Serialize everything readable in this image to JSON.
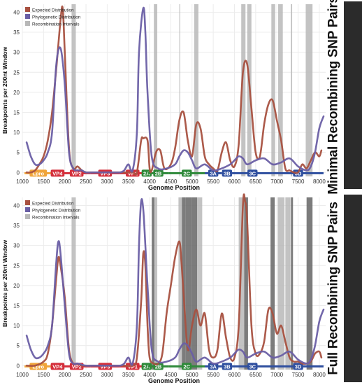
{
  "colors": {
    "expected": "#a85140",
    "phylogenetic": "#6a5fa5",
    "interval_light": "#b8b8b8",
    "interval_dark": "#6e6e6e"
  },
  "chart_data": [
    {
      "type": "line",
      "panel_label": "Minimal Recombining SNP Pairs",
      "xlabel": "Genome Position",
      "ylabel": "Breakpoints per 200nt Window",
      "xlim": [
        1000,
        8150
      ],
      "ylim": [
        -1,
        42
      ],
      "x_ticks": [
        1000,
        1500,
        2000,
        2500,
        3000,
        3500,
        4000,
        4500,
        5000,
        5500,
        6000,
        6500,
        7000,
        7500,
        8000
      ],
      "y_ticks": [
        0,
        5,
        10,
        15,
        20,
        25,
        30,
        35,
        40
      ],
      "grid": true,
      "legend": {
        "position": "top-left",
        "entries": [
          "Expected Distribution",
          "Phylogenetic Distribution",
          "Recombination Intervals"
        ]
      },
      "series": [
        {
          "name": "Expected Distribution",
          "x": [
            1100,
            1200,
            1300,
            1400,
            1500,
            1600,
            1700,
            1800,
            1900,
            1950,
            2000,
            2100,
            2200,
            2300,
            2400,
            2500,
            2600,
            2800,
            3000,
            3200,
            3400,
            3600,
            3700,
            3800,
            3850,
            3950,
            4000,
            4050,
            4150,
            4250,
            4350,
            4500,
            4600,
            4700,
            4800,
            4900,
            5000,
            5100,
            5200,
            5300,
            5400,
            5500,
            5600,
            5700,
            5800,
            5900,
            6000,
            6100,
            6200,
            6300,
            6400,
            6500,
            6600,
            6700,
            6800,
            6900,
            7000,
            7100,
            7200,
            7300,
            7400,
            7500,
            7600,
            7700,
            7800,
            7900,
            8000,
            8050
          ],
          "y": [
            0,
            0,
            0.5,
            2,
            4,
            8,
            15,
            26,
            38,
            41,
            30,
            6,
            1,
            1.5,
            0.5,
            0,
            0,
            0,
            0,
            0,
            0,
            0,
            0,
            8,
            8.5,
            8,
            1,
            0.5,
            5,
            5.5,
            1,
            2,
            6,
            13,
            15,
            8,
            4,
            12,
            11,
            4,
            2,
            1,
            0.5,
            5,
            7.5,
            3,
            1.5,
            7,
            25,
            27,
            16,
            5,
            4,
            12,
            17,
            18,
            13,
            8,
            1,
            0.5,
            0,
            0,
            2,
            1,
            3,
            5,
            4,
            5.5
          ]
        },
        {
          "name": "Phylogenetic Distribution",
          "x": [
            1100,
            1200,
            1300,
            1400,
            1500,
            1600,
            1700,
            1800,
            1900,
            2000,
            2100,
            2200,
            2300,
            2400,
            2500,
            2700,
            2900,
            3100,
            3300,
            3400,
            3500,
            3600,
            3700,
            3750,
            3850,
            3900,
            3950,
            4050,
            4200,
            4400,
            4600,
            4700,
            4800,
            4900,
            5000,
            5100,
            5300,
            5500,
            5700,
            5900,
            6000,
            6100,
            6200,
            6300,
            6500,
            6700,
            6900,
            7100,
            7300,
            7500,
            7700,
            7800,
            7900,
            8000,
            8100
          ],
          "y": [
            7.5,
            4,
            2,
            2,
            3,
            5,
            10,
            27,
            31,
            22,
            5,
            1,
            0.5,
            0.5,
            0,
            0,
            0,
            0,
            0,
            0.5,
            2,
            0.5,
            10,
            30,
            41,
            35,
            20,
            4,
            1,
            1,
            2,
            4,
            5.5,
            5,
            3,
            1,
            2,
            0.5,
            1,
            2,
            3,
            4,
            3.5,
            2,
            3,
            3.5,
            2,
            2.5,
            3.5,
            1.5,
            0.5,
            1.5,
            5,
            11,
            14
          ]
        }
      ],
      "recombination_intervals": [
        {
          "start": 2160,
          "end": 2260,
          "shade": "light"
        },
        {
          "start": 4100,
          "end": 4180,
          "shade": "light"
        },
        {
          "start": 4700,
          "end": 4720,
          "shade": "light"
        },
        {
          "start": 5050,
          "end": 5150,
          "shade": "light"
        },
        {
          "start": 6160,
          "end": 6260,
          "shade": "light"
        },
        {
          "start": 6300,
          "end": 6400,
          "shade": "light"
        },
        {
          "start": 6870,
          "end": 6960,
          "shade": "light"
        },
        {
          "start": 7030,
          "end": 7140,
          "shade": "light"
        },
        {
          "start": 7330,
          "end": 7360,
          "shade": "light"
        },
        {
          "start": 7680,
          "end": 7840,
          "shade": "light"
        }
      ]
    },
    {
      "type": "line",
      "panel_label": "Full Recombining SNP Pairs",
      "xlabel": "Genome Position",
      "ylabel": "Breakpoints per 200nt Window",
      "xlim": [
        1000,
        8150
      ],
      "ylim": [
        -1,
        42
      ],
      "x_ticks": [
        1000,
        1500,
        2000,
        2500,
        3000,
        3500,
        4000,
        4500,
        5000,
        5500,
        6000,
        6500,
        7000,
        7500,
        8000
      ],
      "y_ticks": [
        0,
        5,
        10,
        15,
        20,
        25,
        30,
        35,
        40
      ],
      "grid": true,
      "legend": {
        "position": "top-left",
        "entries": [
          "Expected Distribution",
          "Phylogenetic Distribution",
          "Recombination Intervals"
        ]
      },
      "series": [
        {
          "name": "Expected Distribution",
          "x": [
            1100,
            1300,
            1500,
            1600,
            1700,
            1800,
            1850,
            1900,
            2000,
            2100,
            2200,
            2300,
            2400,
            2600,
            2800,
            3000,
            3200,
            3400,
            3600,
            3700,
            3800,
            3850,
            3900,
            3950,
            4000,
            4100,
            4200,
            4300,
            4400,
            4500,
            4600,
            4700,
            4750,
            4800,
            4900,
            5000,
            5100,
            5200,
            5300,
            5400,
            5500,
            5600,
            5700,
            5800,
            5900,
            6000,
            6100,
            6200,
            6250,
            6300,
            6400,
            6500,
            6600,
            6700,
            6800,
            6900,
            7000,
            7100,
            7200,
            7300,
            7400,
            7500,
            7600,
            7700,
            7800,
            7900,
            8000,
            8050
          ],
          "y": [
            0,
            0,
            1,
            3,
            10,
            22,
            27,
            25,
            17,
            4,
            0.5,
            0.5,
            0,
            0,
            0,
            0,
            0,
            0,
            0,
            2,
            16,
            28,
            25,
            10,
            2,
            0.5,
            0.5,
            3,
            13,
            20,
            27,
            31,
            26,
            18,
            4,
            10,
            14,
            10,
            13,
            4,
            2,
            4,
            13,
            7,
            2,
            2,
            10,
            40,
            41,
            36,
            10,
            3,
            3,
            6,
            14,
            13,
            8,
            10,
            6,
            2,
            1,
            1,
            0.5,
            0.5,
            1,
            3,
            3.5,
            2
          ]
        },
        {
          "name": "Phylogenetic Distribution",
          "x": [
            1100,
            1200,
            1300,
            1400,
            1500,
            1600,
            1700,
            1800,
            1850,
            1900,
            2000,
            2100,
            2200,
            2300,
            2500,
            2700,
            2900,
            3100,
            3300,
            3400,
            3500,
            3600,
            3700,
            3750,
            3800,
            3850,
            3900,
            3950,
            4050,
            4200,
            4400,
            4600,
            4700,
            4800,
            4900,
            5000,
            5100,
            5300,
            5500,
            5700,
            5900,
            6000,
            6100,
            6200,
            6300,
            6500,
            6700,
            6900,
            7100,
            7300,
            7500,
            7700,
            7800,
            7900,
            8000,
            8100
          ],
          "y": [
            7.5,
            4,
            2,
            2,
            3,
            5,
            10,
            26,
            31,
            28,
            15,
            3,
            0.5,
            0.5,
            0,
            0,
            0,
            0,
            0,
            0.5,
            2,
            0.5,
            10,
            30,
            41,
            39,
            30,
            20,
            4,
            1,
            1,
            2,
            4,
            5.5,
            5,
            3,
            1,
            2,
            0.5,
            1,
            2,
            3,
            4,
            3.5,
            2,
            3,
            3.5,
            2,
            2.5,
            3.5,
            1.5,
            0.5,
            1.5,
            5,
            11,
            14
          ]
        }
      ],
      "recombination_intervals": [
        {
          "start": 2160,
          "end": 2260,
          "shade": "light"
        },
        {
          "start": 4050,
          "end": 4120,
          "shade": "dark"
        },
        {
          "start": 4130,
          "end": 4180,
          "shade": "light"
        },
        {
          "start": 4680,
          "end": 4760,
          "shade": "light"
        },
        {
          "start": 4760,
          "end": 4850,
          "shade": "dark"
        },
        {
          "start": 4850,
          "end": 5000,
          "shade": "dark"
        },
        {
          "start": 5000,
          "end": 5120,
          "shade": "dark"
        },
        {
          "start": 5120,
          "end": 5240,
          "shade": "light"
        },
        {
          "start": 6100,
          "end": 6230,
          "shade": "light"
        },
        {
          "start": 6230,
          "end": 6320,
          "shade": "dark"
        },
        {
          "start": 6850,
          "end": 6950,
          "shade": "dark"
        },
        {
          "start": 7020,
          "end": 7180,
          "shade": "light"
        },
        {
          "start": 7200,
          "end": 7320,
          "shade": "light"
        },
        {
          "start": 7330,
          "end": 7380,
          "shade": "dark"
        },
        {
          "start": 7700,
          "end": 7840,
          "shade": "dark"
        }
      ]
    }
  ],
  "genome_map": [
    {
      "label": "Lpro",
      "start": 1050,
      "end": 1700,
      "color": "#f0a53a"
    },
    {
      "label": "VP4",
      "start": 1700,
      "end": 1960,
      "color": "#d42f3b"
    },
    {
      "label": "VP2",
      "start": 1960,
      "end": 2600,
      "color": "#d42f3b"
    },
    {
      "label": "VP3",
      "start": 2600,
      "end": 3300,
      "color": "#d42f3b"
    },
    {
      "label": "VP1",
      "start": 3300,
      "end": 3900,
      "color": "#d42f3b"
    },
    {
      "label": "2A",
      "start": 3900,
      "end": 3960,
      "color": "#2f8a3a"
    },
    {
      "label": "2B",
      "start": 3960,
      "end": 4450,
      "color": "#2f8a3a"
    },
    {
      "label": "2C",
      "start": 4450,
      "end": 5300,
      "color": "#2f8a3a"
    },
    {
      "label": "3A",
      "start": 5300,
      "end": 5700,
      "color": "#2f4f9f"
    },
    {
      "label": "3B",
      "start": 5700,
      "end": 5950,
      "color": "#2f4f9f"
    },
    {
      "label": "3C",
      "start": 5950,
      "end": 6900,
      "color": "#2f4f9f"
    },
    {
      "label": "3D",
      "start": 6900,
      "end": 8100,
      "color": "#2f4f9f"
    }
  ]
}
